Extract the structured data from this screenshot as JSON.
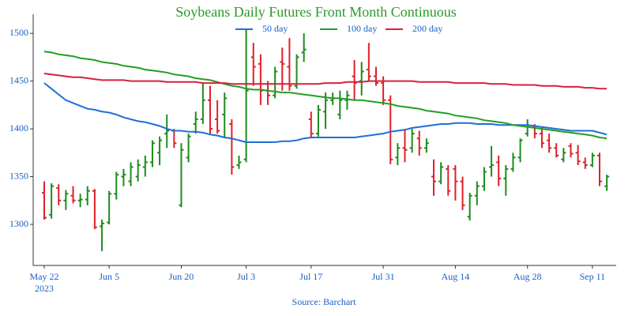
{
  "chart_data": {
    "type": "ohlc",
    "title": "Soybeans Daily Futures Front Month Continuous",
    "x_sublabel": "2023",
    "source": "Source: Barchart",
    "categories": [
      "May 22",
      null,
      null,
      null,
      null,
      null,
      null,
      null,
      null,
      "Jun 5",
      null,
      null,
      null,
      null,
      null,
      null,
      null,
      null,
      null,
      "Jun 20",
      null,
      null,
      null,
      null,
      null,
      null,
      null,
      null,
      "Jul 3",
      null,
      null,
      null,
      null,
      null,
      null,
      null,
      null,
      "Jul 17",
      null,
      null,
      null,
      null,
      null,
      null,
      null,
      null,
      null,
      "Jul 31",
      null,
      null,
      null,
      null,
      null,
      null,
      null,
      null,
      null,
      "Aug 14",
      null,
      null,
      null,
      null,
      null,
      null,
      null,
      null,
      null,
      "Aug 28",
      null,
      null,
      null,
      null,
      null,
      null,
      null,
      null,
      "Sep 11",
      null,
      null
    ],
    "ohlc": {
      "up_color": "#1e8b1e",
      "down_color": "#e0202a",
      "open": [
        1333,
        1310,
        1338,
        1325,
        1330,
        1325,
        1326,
        1335,
        1298,
        1302,
        1332,
        1350,
        1345,
        1350,
        1360,
        1365,
        1375,
        1395,
        1398,
        1320,
        1370,
        1405,
        1410,
        1430,
        1410,
        1415,
        1405,
        1362,
        1368,
        1475,
        1468,
        1440,
        1435,
        1470,
        1465,
        1445,
        1480,
        1410,
        1395,
        1418,
        1430,
        1415,
        1430,
        1455,
        1450,
        1462,
        1455,
        1448,
        1430,
        1370,
        1380,
        1380,
        1390,
        1380,
        1350,
        1345,
        1358,
        1358,
        1345,
        1308,
        1330,
        1340,
        1360,
        1365,
        1348,
        1358,
        1370,
        1395,
        1402,
        1395,
        1388,
        1380,
        1368,
        1382,
        1375,
        1365,
        1362,
        1372,
        1340
      ],
      "high": [
        1345,
        1343,
        1342,
        1336,
        1340,
        1332,
        1340,
        1337,
        1305,
        1335,
        1355,
        1358,
        1365,
        1368,
        1372,
        1388,
        1392,
        1415,
        1400,
        1385,
        1395,
        1418,
        1448,
        1445,
        1430,
        1438,
        1410,
        1372,
        1505,
        1490,
        1478,
        1450,
        1465,
        1485,
        1495,
        1478,
        1500,
        1418,
        1425,
        1438,
        1438,
        1440,
        1440,
        1472,
        1470,
        1490,
        1465,
        1455,
        1435,
        1385,
        1400,
        1400,
        1398,
        1390,
        1368,
        1365,
        1362,
        1362,
        1350,
        1333,
        1345,
        1360,
        1382,
        1372,
        1362,
        1375,
        1390,
        1410,
        1405,
        1402,
        1395,
        1385,
        1380,
        1385,
        1383,
        1370,
        1375,
        1375,
        1352
      ],
      "low": [
        1305,
        1306,
        1320,
        1315,
        1322,
        1318,
        1320,
        1295,
        1272,
        1300,
        1326,
        1340,
        1340,
        1345,
        1350,
        1360,
        1362,
        1380,
        1380,
        1318,
        1365,
        1395,
        1405,
        1395,
        1395,
        1390,
        1352,
        1358,
        1365,
        1445,
        1425,
        1425,
        1432,
        1440,
        1440,
        1442,
        1470,
        1390,
        1392,
        1400,
        1425,
        1410,
        1420,
        1430,
        1435,
        1450,
        1445,
        1425,
        1363,
        1362,
        1365,
        1375,
        1372,
        1375,
        1330,
        1342,
        1330,
        1325,
        1315,
        1304,
        1320,
        1335,
        1350,
        1340,
        1330,
        1355,
        1365,
        1392,
        1390,
        1380,
        1375,
        1370,
        1365,
        1370,
        1362,
        1358,
        1360,
        1340,
        1335
      ],
      "close": [
        1307,
        1340,
        1325,
        1332,
        1325,
        1326,
        1335,
        1297,
        1301,
        1332,
        1352,
        1352,
        1360,
        1362,
        1365,
        1385,
        1388,
        1398,
        1385,
        1378,
        1392,
        1410,
        1430,
        1400,
        1398,
        1432,
        1360,
        1365,
        1440,
        1465,
        1440,
        1435,
        1460,
        1468,
        1445,
        1475,
        1483,
        1395,
        1420,
        1430,
        1432,
        1430,
        1435,
        1448,
        1460,
        1455,
        1448,
        1430,
        1368,
        1380,
        1378,
        1395,
        1380,
        1385,
        1345,
        1360,
        1335,
        1345,
        1320,
        1330,
        1340,
        1355,
        1362,
        1348,
        1358,
        1370,
        1388,
        1402,
        1395,
        1385,
        1380,
        1372,
        1375,
        1374,
        1366,
        1362,
        1372,
        1345,
        1350
      ]
    },
    "series": [
      {
        "name": "50 day",
        "color": "#1f6fd6",
        "values": [
          1448,
          1442,
          1436,
          1430,
          1427,
          1424,
          1421,
          1420,
          1418,
          1417,
          1415,
          1412,
          1410,
          1408,
          1407,
          1405,
          1403,
          1400,
          1398,
          1398,
          1397,
          1397,
          1396,
          1394,
          1393,
          1391,
          1390,
          1388,
          1386,
          1386,
          1386,
          1386,
          1386,
          1387,
          1387,
          1388,
          1390,
          1391,
          1391,
          1391,
          1391,
          1391,
          1391,
          1391,
          1392,
          1393,
          1394,
          1395,
          1397,
          1398,
          1399,
          1401,
          1402,
          1403,
          1404,
          1405,
          1405,
          1406,
          1406,
          1406,
          1405,
          1405,
          1405,
          1404,
          1404,
          1404,
          1404,
          1404,
          1403,
          1402,
          1401,
          1400,
          1399,
          1398,
          1398,
          1398,
          1398,
          1396,
          1394
        ]
      },
      {
        "name": "100 day",
        "color": "#21a021",
        "values": [
          1481,
          1480,
          1478,
          1477,
          1476,
          1474,
          1473,
          1472,
          1470,
          1469,
          1468,
          1466,
          1465,
          1464,
          1462,
          1461,
          1460,
          1459,
          1457,
          1456,
          1455,
          1453,
          1452,
          1451,
          1449,
          1447,
          1445,
          1444,
          1442,
          1441,
          1441,
          1440,
          1439,
          1438,
          1438,
          1437,
          1436,
          1435,
          1434,
          1433,
          1432,
          1432,
          1431,
          1430,
          1430,
          1429,
          1428,
          1427,
          1426,
          1424,
          1423,
          1422,
          1421,
          1419,
          1418,
          1417,
          1416,
          1414,
          1413,
          1412,
          1411,
          1409,
          1408,
          1407,
          1406,
          1404,
          1403,
          1402,
          1401,
          1400,
          1399,
          1398,
          1397,
          1396,
          1395,
          1394,
          1393,
          1391,
          1390
        ]
      },
      {
        "name": "200 day",
        "color": "#d62040",
        "values": [
          1458,
          1457,
          1456,
          1455,
          1454,
          1454,
          1453,
          1452,
          1451,
          1451,
          1451,
          1451,
          1450,
          1450,
          1450,
          1450,
          1450,
          1449,
          1449,
          1449,
          1449,
          1449,
          1448,
          1448,
          1448,
          1448,
          1447,
          1447,
          1447,
          1447,
          1447,
          1447,
          1447,
          1447,
          1447,
          1447,
          1447,
          1447,
          1447,
          1448,
          1448,
          1448,
          1449,
          1449,
          1449,
          1450,
          1450,
          1450,
          1450,
          1450,
          1450,
          1450,
          1449,
          1449,
          1449,
          1449,
          1449,
          1448,
          1448,
          1448,
          1448,
          1448,
          1447,
          1447,
          1447,
          1446,
          1446,
          1446,
          1446,
          1445,
          1445,
          1445,
          1444,
          1444,
          1444,
          1443,
          1443,
          1442,
          1442
        ]
      }
    ],
    "ylim": [
      1257,
      1520
    ],
    "yticks": [
      1300,
      1350,
      1400,
      1450,
      1500
    ],
    "grid": false,
    "legend": "top"
  }
}
